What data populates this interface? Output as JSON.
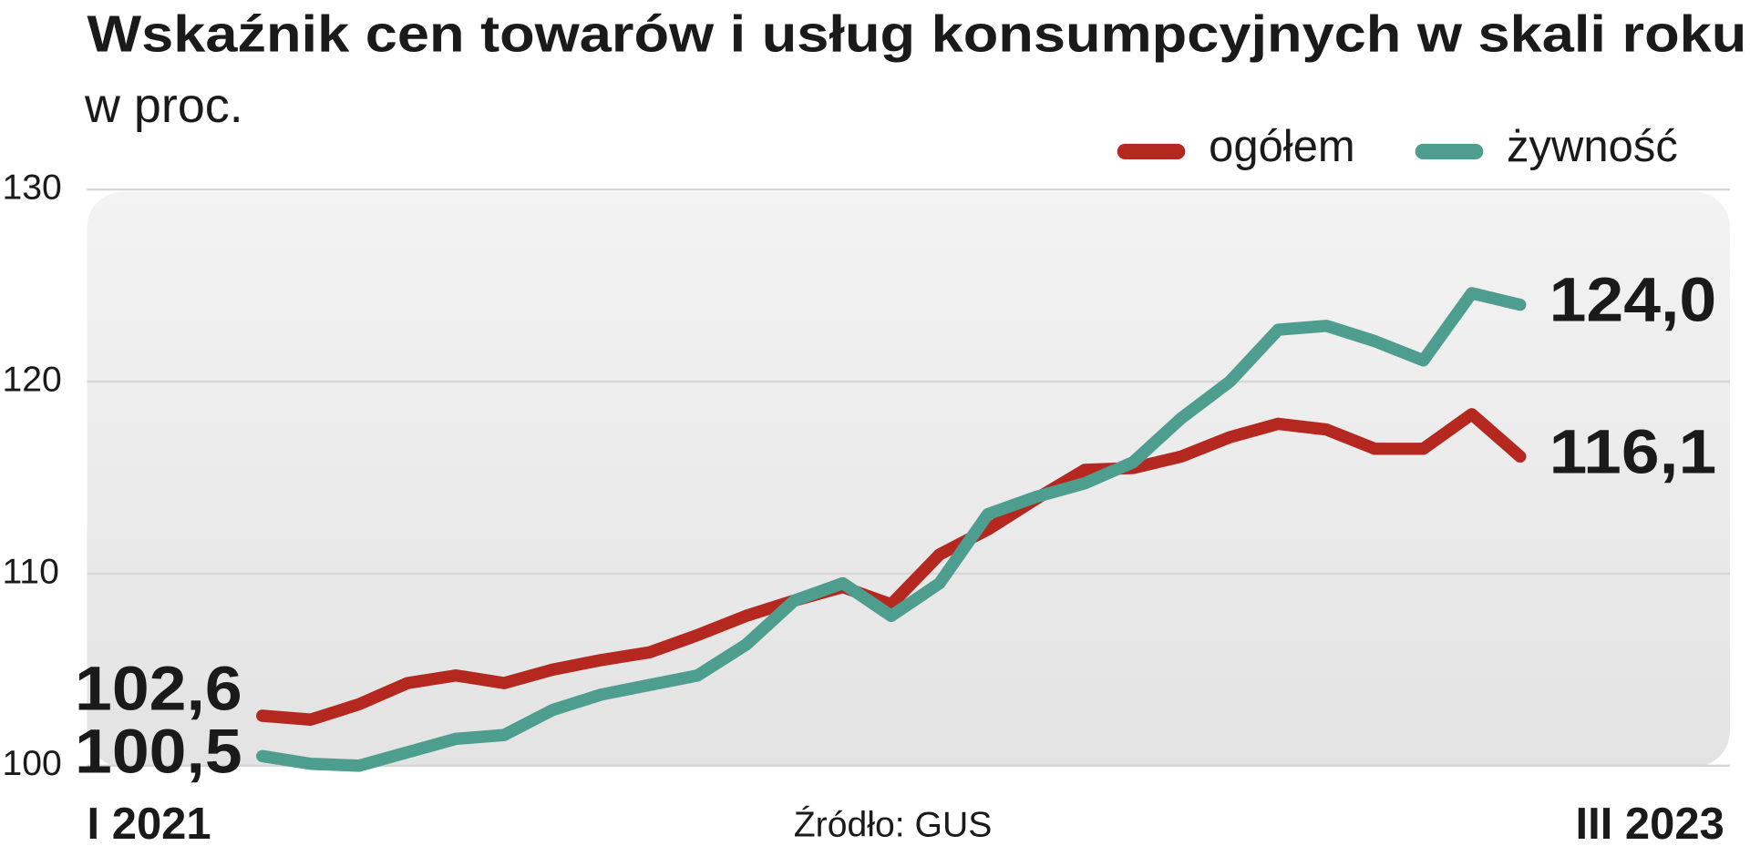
{
  "chart_data": {
    "type": "line",
    "title": "Wskaźnik cen towarów i usług konsumpcyjnych w skali roku",
    "subtitle": "w proc.",
    "source": "Źródło: GUS",
    "categories": [
      "I 2021",
      null,
      null,
      null,
      null,
      null,
      null,
      null,
      null,
      null,
      null,
      null,
      null,
      null,
      null,
      null,
      null,
      null,
      null,
      null,
      null,
      null,
      null,
      null,
      null,
      null,
      "III 2023"
    ],
    "series": [
      {
        "name": "ogółem",
        "color": "#b5281f",
        "values": [
          102.6,
          102.4,
          103.2,
          104.3,
          104.7,
          104.3,
          105.0,
          105.5,
          105.9,
          106.8,
          107.8,
          108.6,
          109.3,
          108.4,
          111.0,
          112.3,
          113.9,
          115.4,
          115.5,
          116.1,
          117.1,
          117.8,
          117.5,
          116.5,
          116.5,
          118.3,
          116.1
        ],
        "value_labels": [
          "102,6",
          null,
          null,
          null,
          null,
          null,
          null,
          null,
          null,
          null,
          null,
          null,
          null,
          null,
          null,
          null,
          null,
          null,
          null,
          null,
          null,
          null,
          null,
          null,
          null,
          null,
          "116,1"
        ]
      },
      {
        "name": "żywność",
        "color": "#4e9e8f",
        "values": [
          100.5,
          100.1,
          100.0,
          100.7,
          101.4,
          101.6,
          102.9,
          103.7,
          104.2,
          104.7,
          106.3,
          108.6,
          109.5,
          107.8,
          109.5,
          113.1,
          114.0,
          114.7,
          115.8,
          118.1,
          120.0,
          122.7,
          122.9,
          122.1,
          121.1,
          124.6,
          124.0
        ],
        "value_labels": [
          "100,5",
          null,
          null,
          null,
          null,
          null,
          null,
          null,
          null,
          null,
          null,
          null,
          null,
          null,
          null,
          null,
          null,
          null,
          null,
          null,
          null,
          null,
          null,
          null,
          null,
          null,
          "124,0"
        ]
      }
    ],
    "ylim": [
      100,
      130
    ],
    "yticks": [
      100,
      110,
      120,
      130
    ],
    "grid": true,
    "legend": "top-right"
  }
}
